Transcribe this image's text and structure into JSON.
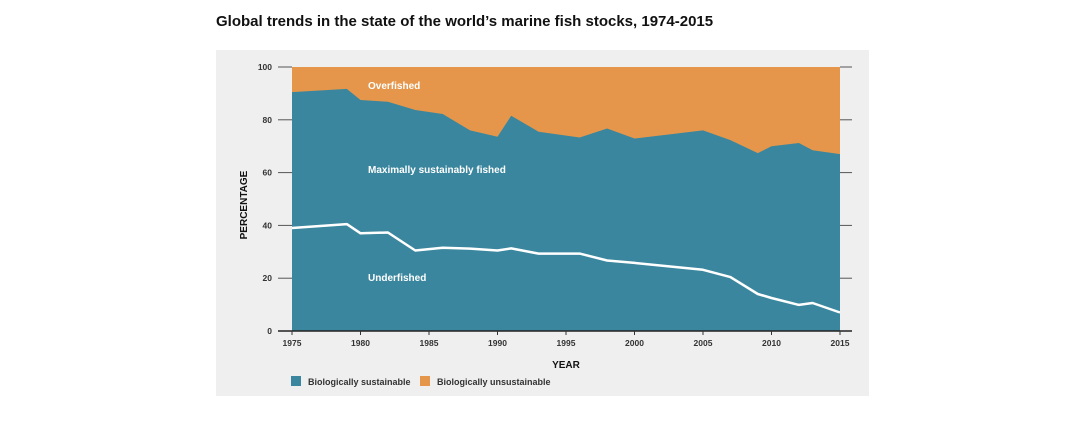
{
  "title": "Global trends in the state of the world’s marine fish stocks, 1974-2015",
  "colors": {
    "sustainable": "#3a869e",
    "unsustainable": "#e5964a",
    "underfished_line": "#ffffff",
    "background": "#efefef"
  },
  "chart_data": {
    "type": "area",
    "title": "Global trends in the state of the world’s marine fish stocks, 1974-2015",
    "xlabel": "YEAR",
    "ylabel": "PERCENTAGE",
    "xlim": [
      1975,
      2015
    ],
    "ylim": [
      0,
      100
    ],
    "x_ticks": [
      "1975",
      "1980",
      "1985",
      "1990",
      "1995",
      "2000",
      "2005",
      "2010",
      "2015"
    ],
    "y_ticks": [
      "0",
      "20",
      "40",
      "60",
      "80",
      "100"
    ],
    "grid": false,
    "x": [
      1975,
      1979,
      1980,
      1982,
      1984,
      1986,
      1988,
      1990,
      1991,
      1993,
      1996,
      1998,
      2000,
      2005,
      2007,
      2009,
      2010,
      2012,
      2013,
      2015
    ],
    "series": [
      {
        "name": "Biologically sustainable",
        "values": [
          90.5,
          91.7,
          87.5,
          86.8,
          83.7,
          82.2,
          76.0,
          73.6,
          81.5,
          75.5,
          73.3,
          76.7,
          72.9,
          76.0,
          72.3,
          67.4,
          70.0,
          71.2,
          68.5,
          67.0
        ]
      },
      {
        "name": "Biologically unsustainable",
        "values": [
          9.5,
          8.3,
          12.5,
          13.2,
          16.3,
          17.8,
          24.0,
          26.4,
          18.5,
          24.5,
          26.7,
          23.3,
          27.1,
          24.0,
          27.7,
          32.6,
          30.0,
          28.8,
          31.5,
          33.0
        ]
      },
      {
        "name": "Underfished",
        "values": [
          39.0,
          40.5,
          37.0,
          37.3,
          30.5,
          31.5,
          31.2,
          30.5,
          31.3,
          29.3,
          29.3,
          26.7,
          25.8,
          23.2,
          20.4,
          14.0,
          12.5,
          9.9,
          10.6,
          7.0
        ]
      }
    ],
    "annotations": [
      "Overfished",
      "Maximally sustainably fished",
      "Underfished"
    ],
    "legend": {
      "placement": "bottom-left",
      "entries": [
        "Biologically sustainable",
        "Biologically unsustainable"
      ]
    }
  }
}
